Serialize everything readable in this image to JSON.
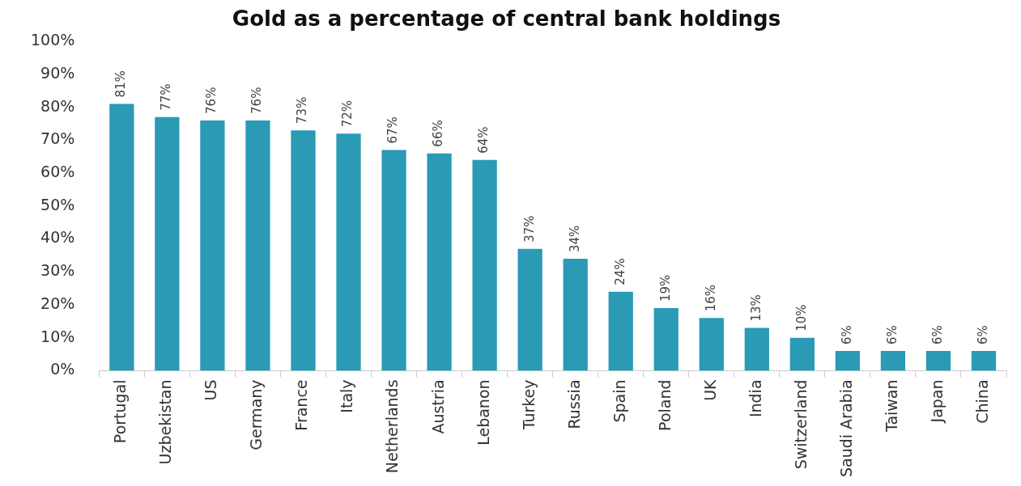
{
  "chart_data": {
    "type": "bar",
    "title": "Gold as a percentage of central bank holdings",
    "categories": [
      "Portugal",
      "Uzbekistan",
      "US",
      "Germany",
      "France",
      "Italy",
      "Netherlands",
      "Austria",
      "Lebanon",
      "Turkey",
      "Russia",
      "Spain",
      "Poland",
      "UK",
      "India",
      "Switzerland",
      "Saudi Arabia",
      "Taiwan",
      "Japan",
      "China"
    ],
    "values": [
      81,
      77,
      76,
      76,
      73,
      72,
      67,
      66,
      64,
      37,
      34,
      24,
      19,
      16,
      13,
      10,
      6,
      6,
      6,
      6
    ],
    "value_labels": [
      "81%",
      "77%",
      "76%",
      "76%",
      "73%",
      "72%",
      "67%",
      "66%",
      "64%",
      "37%",
      "34%",
      "24%",
      "19%",
      "16%",
      "13%",
      "10%",
      "6%",
      "6%",
      "6%",
      "6%"
    ],
    "color": "#2a9ab5",
    "ylim": [
      0,
      100
    ],
    "yticks": [
      {
        "value": 0,
        "label": "0%"
      },
      {
        "value": 10,
        "label": "10%"
      },
      {
        "value": 20,
        "label": "20%"
      },
      {
        "value": 30,
        "label": "30%"
      },
      {
        "value": 40,
        "label": "40%"
      },
      {
        "value": 50,
        "label": "50%"
      },
      {
        "value": 60,
        "label": "60%"
      },
      {
        "value": 70,
        "label": "70%"
      },
      {
        "value": 80,
        "label": "80%"
      },
      {
        "value": 90,
        "label": "90%"
      },
      {
        "value": 100,
        "label": "100%"
      }
    ],
    "grid": false,
    "legend": false
  }
}
